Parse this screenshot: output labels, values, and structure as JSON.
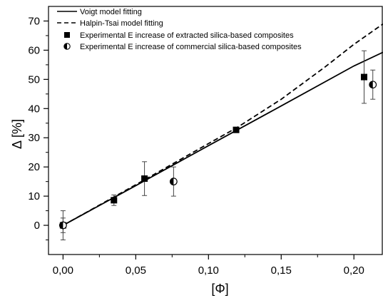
{
  "chart_data": {
    "type": "scatter",
    "xlabel": "[Φ]",
    "ylabel": "Δ [%]",
    "xlim": [
      -0.01,
      0.22
    ],
    "ylim": [
      -10,
      75
    ],
    "xticks": [
      0.0,
      0.05,
      0.1,
      0.15,
      0.2
    ],
    "xtick_labels": [
      "0,00",
      "0,05",
      "0,10",
      "0,15",
      "0,20"
    ],
    "yticks": [
      0,
      10,
      20,
      30,
      40,
      50,
      60,
      70
    ],
    "ytick_labels": [
      "0",
      "10",
      "20",
      "30",
      "40",
      "50",
      "60",
      "70"
    ],
    "grid": false,
    "legend_position": "top-left",
    "series": [
      {
        "name": "Voigt model fitting",
        "kind": "line",
        "style": "solid",
        "color": "#000000",
        "x": [
          0.0,
          0.05,
          0.1,
          0.15,
          0.2,
          0.22
        ],
        "y": [
          0.0,
          13.6,
          27.3,
          40.9,
          54.6,
          59.3
        ]
      },
      {
        "name": "Halpin-Tsai model fitting",
        "kind": "line",
        "style": "dashed",
        "color": "#000000",
        "x": [
          0.0,
          0.05,
          0.1,
          0.12,
          0.15,
          0.18,
          0.2,
          0.22
        ],
        "y": [
          0.0,
          13.9,
          28.0,
          33.6,
          43.2,
          54.2,
          62.0,
          69.0
        ]
      },
      {
        "name": "Experimental E increase of extracted silica-based composites",
        "kind": "points",
        "marker": "square",
        "color": "#000000",
        "x": [
          0.0,
          0.035,
          0.056,
          0.119,
          0.207
        ],
        "y": [
          0.0,
          8.6,
          16.0,
          32.7,
          50.8
        ],
        "err": [
          2.5,
          1.8,
          5.8,
          0.0,
          9.0
        ]
      },
      {
        "name": "Experimental E increase of commercial silica-based composites",
        "kind": "points",
        "marker": "half-filled-circle",
        "color": "#000000",
        "x": [
          0.0,
          0.076,
          0.213
        ],
        "y": [
          0.0,
          15.0,
          48.2
        ],
        "err": [
          5.0,
          5.0,
          5.0
        ]
      }
    ]
  }
}
